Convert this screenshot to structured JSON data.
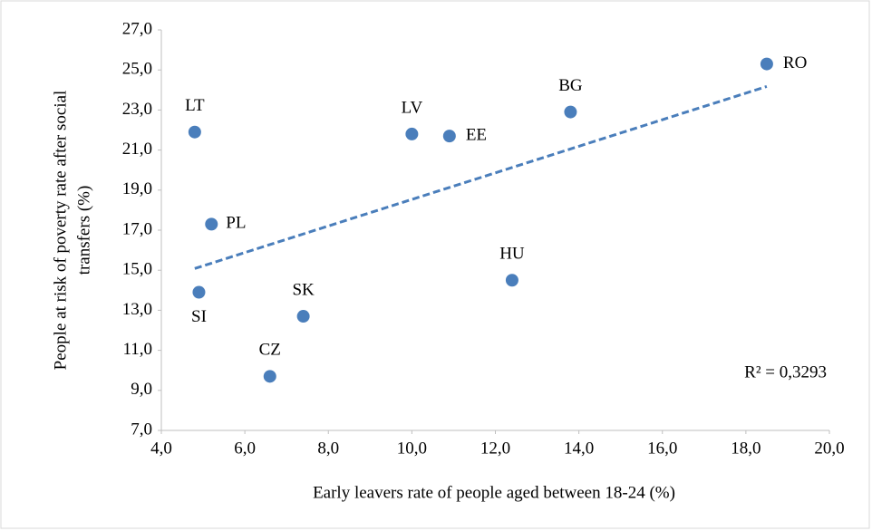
{
  "chart_data": {
    "type": "scatter",
    "xlabel": "Early leavers rate of people aged between 18-24 (%)",
    "ylabel": [
      "People at risk of poverty rate after social",
      "transfers (%)"
    ],
    "labels": [
      "LT",
      "LV",
      "EE",
      "BG",
      "RO",
      "PL",
      "SI",
      "SK",
      "CZ",
      "HU"
    ],
    "x": [
      4.8,
      10.0,
      10.9,
      13.8,
      18.5,
      5.2,
      4.9,
      7.4,
      6.6,
      12.4
    ],
    "values": [
      21.9,
      21.8,
      21.7,
      22.9,
      25.3,
      17.3,
      13.9,
      12.7,
      9.7,
      14.5
    ],
    "color": "#4a7ebb",
    "trendline": {
      "color": "#4a7ebb",
      "annotation": "R² = 0,3293"
    },
    "xlim": [
      4,
      20
    ],
    "xticks": [
      {
        "value": 4,
        "label": "4,0"
      },
      {
        "value": 6,
        "label": "6,0"
      },
      {
        "value": 8,
        "label": "8,0"
      },
      {
        "value": 10,
        "label": "10,0"
      },
      {
        "value": 12,
        "label": "12,0"
      },
      {
        "value": 14,
        "label": "14,0"
      },
      {
        "value": 16,
        "label": "16,0"
      },
      {
        "value": 18,
        "label": "18,0"
      },
      {
        "value": 20,
        "label": "20,0"
      }
    ],
    "ylim": [
      7,
      27
    ],
    "yticks": [
      {
        "value": 7,
        "label": "7,0"
      },
      {
        "value": 9,
        "label": "9,0"
      },
      {
        "value": 11,
        "label": "11,0"
      },
      {
        "value": 13,
        "label": "13,0"
      },
      {
        "value": 15,
        "label": "15,0"
      },
      {
        "value": 17,
        "label": "17,0"
      },
      {
        "value": 19,
        "label": "19,0"
      },
      {
        "value": 21,
        "label": "21,0"
      },
      {
        "value": 23,
        "label": "23,0"
      },
      {
        "value": 25,
        "label": "25,0"
      },
      {
        "value": 27,
        "label": "27,0"
      }
    ],
    "grid": false
  }
}
